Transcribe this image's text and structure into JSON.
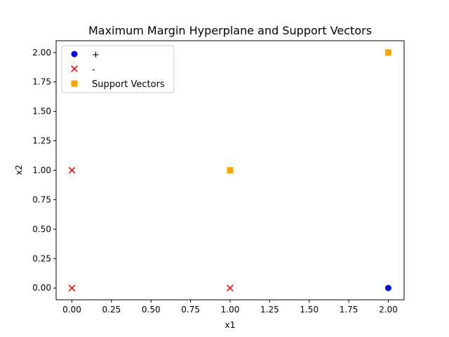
{
  "chart_data": {
    "type": "scatter",
    "title": "Maximum Margin Hyperplane and Support Vectors",
    "xlabel": "x1",
    "ylabel": "x2",
    "xlim": [
      -0.1,
      2.1
    ],
    "ylim": [
      -0.1,
      2.1
    ],
    "xticks": [
      "0.00",
      "0.25",
      "0.50",
      "0.75",
      "1.00",
      "1.25",
      "1.50",
      "1.75",
      "2.00"
    ],
    "yticks": [
      "0.00",
      "0.25",
      "0.50",
      "0.75",
      "1.00",
      "1.25",
      "1.50",
      "1.75",
      "2.00"
    ],
    "grid": false,
    "legend_position": "upper-left",
    "series": [
      {
        "name": "+",
        "marker": "circle",
        "color": "#0000ff",
        "points": [
          [
            2,
            0
          ],
          [
            1,
            1
          ],
          [
            2,
            2
          ]
        ]
      },
      {
        "name": "-",
        "marker": "x",
        "color": "#ff0000",
        "points": [
          [
            0,
            0
          ],
          [
            1,
            0
          ],
          [
            0,
            1
          ]
        ]
      },
      {
        "name": "Support Vectors",
        "marker": "square",
        "color": "#ffa500",
        "points": [
          [
            1,
            1
          ],
          [
            2,
            2
          ]
        ]
      }
    ]
  }
}
